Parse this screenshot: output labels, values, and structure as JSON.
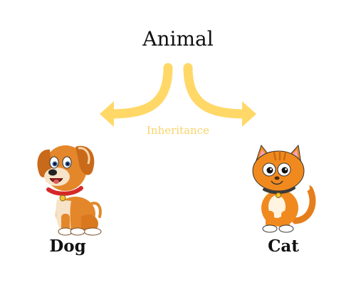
{
  "diagram": {
    "parent": "Animal",
    "relation": "Inheritance",
    "children": [
      "Dog",
      "Cat"
    ]
  },
  "colors": {
    "arrow": "#FFD868",
    "caption": "#F9D36B",
    "text": "#111111"
  },
  "icons": {
    "dog": "dog-icon",
    "cat": "cat-icon"
  }
}
